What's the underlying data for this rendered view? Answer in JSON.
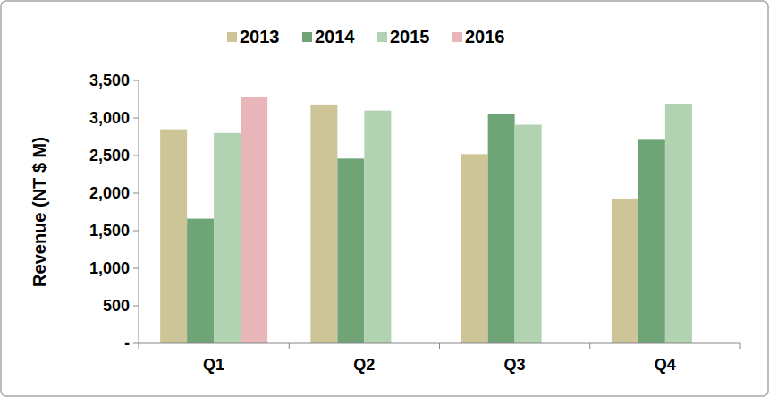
{
  "chart_data": {
    "type": "bar",
    "y_label": "Revenue (NT $ M)",
    "categories": [
      "Q1",
      "Q2",
      "Q3",
      "Q4"
    ],
    "series": [
      {
        "name": "2013",
        "color": "#cdc597",
        "values": [
          2850,
          3180,
          2520,
          1930
        ]
      },
      {
        "name": "2014",
        "color": "#6fa477",
        "values": [
          1660,
          2460,
          3060,
          2710
        ]
      },
      {
        "name": "2015",
        "color": "#b2d3b1",
        "values": [
          2800,
          3100,
          2910,
          3190
        ]
      },
      {
        "name": "2016",
        "color": "#e8b6b9",
        "values": [
          3280,
          null,
          null,
          null
        ]
      }
    ],
    "ylim": [
      0,
      3500
    ],
    "yticks": [
      {
        "value": 0,
        "label": "-"
      },
      500,
      {
        "value": 1000,
        "label": "1,000"
      },
      {
        "value": 1500,
        "label": "1,500"
      },
      {
        "value": 2000,
        "label": "2,000"
      },
      {
        "value": 2500,
        "label": "2,500"
      },
      {
        "value": 3000,
        "label": "3,000"
      },
      {
        "value": 3500,
        "label": "3,500"
      }
    ],
    "grid": false,
    "legend": "top"
  }
}
